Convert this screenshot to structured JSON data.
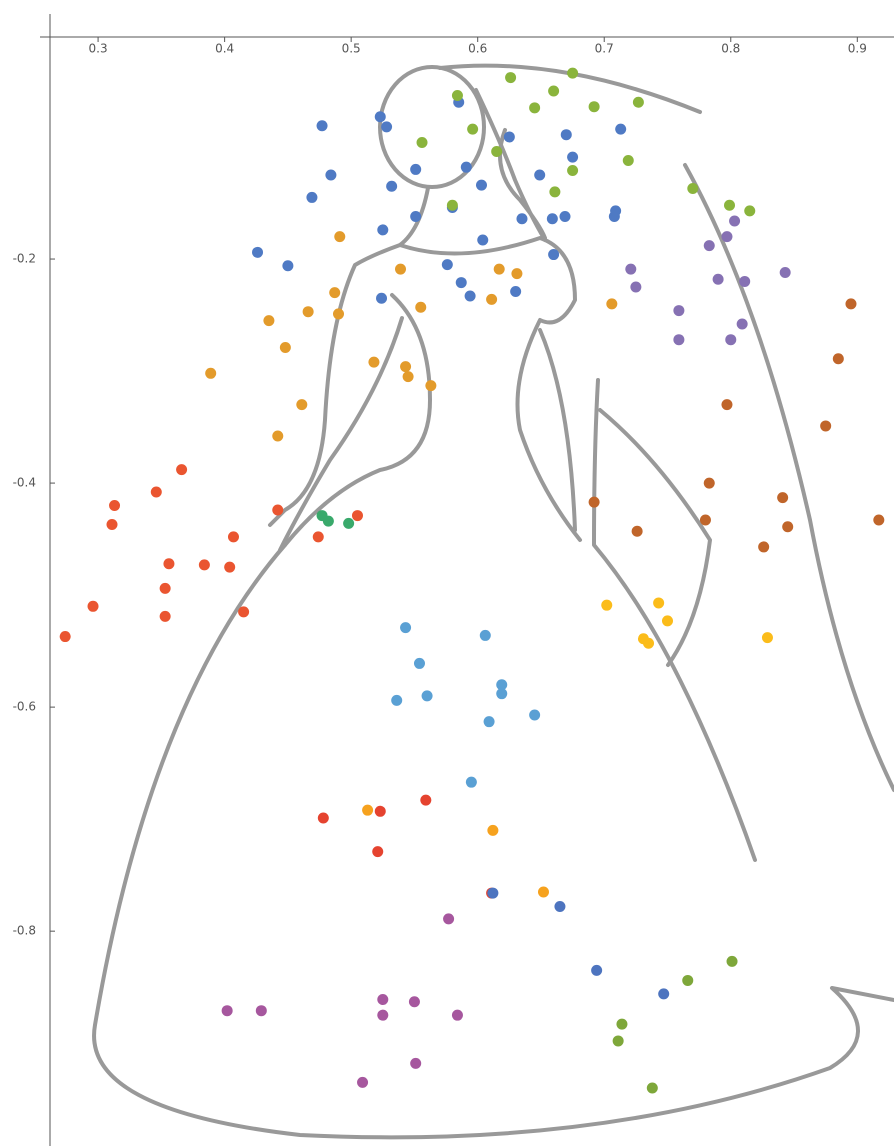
{
  "chart_data": {
    "type": "scatter",
    "xlim": [
      0.262,
      0.929
    ],
    "ylim": [
      -0.99,
      0
    ],
    "xticks": [
      0.3,
      0.4,
      0.5,
      0.6,
      0.7,
      0.8,
      0.9
    ],
    "yticks": [
      -0.2,
      -0.4,
      -0.6,
      -0.8
    ],
    "series": [
      {
        "color": "#4f7ac4",
        "x": [
          0.477,
          0.523,
          0.528,
          0.585,
          0.484,
          0.469,
          0.532,
          0.551,
          0.551,
          0.591,
          0.525,
          0.603,
          0.58,
          0.426,
          0.45,
          0.524,
          0.576,
          0.587,
          0.594,
          0.604,
          0.625,
          0.63,
          0.649,
          0.659,
          0.67,
          0.675,
          0.669,
          0.66,
          0.713,
          0.708,
          0.709,
          0.635
        ],
        "values": [
          -0.081,
          -0.073,
          -0.082,
          -0.06,
          -0.125,
          -0.145,
          -0.135,
          -0.12,
          -0.162,
          -0.118,
          -0.174,
          -0.134,
          -0.154,
          -0.194,
          -0.206,
          -0.235,
          -0.205,
          -0.221,
          -0.233,
          -0.183,
          -0.091,
          -0.229,
          -0.125,
          -0.164,
          -0.089,
          -0.109,
          -0.162,
          -0.196,
          -0.084,
          -0.162,
          -0.157,
          -0.164
        ]
      },
      {
        "color": "#8ab43c",
        "x": [
          0.675,
          0.626,
          0.584,
          0.66,
          0.645,
          0.692,
          0.727,
          0.596,
          0.556,
          0.615,
          0.719,
          0.675,
          0.661,
          0.58,
          0.77,
          0.799,
          0.815
        ],
        "values": [
          -0.034,
          -0.038,
          -0.054,
          -0.05,
          -0.065,
          -0.064,
          -0.06,
          -0.084,
          -0.096,
          -0.104,
          -0.112,
          -0.121,
          -0.14,
          -0.152,
          -0.137,
          -0.152,
          -0.157
        ]
      },
      {
        "color": "#e39b2b",
        "x": [
          0.491,
          0.487,
          0.49,
          0.435,
          0.466,
          0.448,
          0.539,
          0.555,
          0.617,
          0.631,
          0.611,
          0.706,
          0.518,
          0.543,
          0.545,
          0.563,
          0.389,
          0.461,
          0.442
        ],
        "values": [
          -0.18,
          -0.23,
          -0.249,
          -0.255,
          -0.247,
          -0.279,
          -0.209,
          -0.243,
          -0.209,
          -0.213,
          -0.236,
          -0.24,
          -0.292,
          -0.296,
          -0.305,
          -0.313,
          -0.302,
          -0.33,
          -0.358
        ]
      },
      {
        "color": "#8671b3",
        "x": [
          0.803,
          0.783,
          0.797,
          0.843,
          0.721,
          0.79,
          0.811,
          0.725,
          0.759,
          0.809,
          0.759,
          0.8
        ],
        "values": [
          -0.166,
          -0.188,
          -0.18,
          -0.212,
          -0.209,
          -0.218,
          -0.22,
          -0.225,
          -0.246,
          -0.258,
          -0.272,
          -0.272
        ]
      },
      {
        "color": "#c0652a",
        "x": [
          0.895,
          0.885,
          0.797,
          0.875,
          0.783,
          0.841,
          0.692,
          0.845,
          0.78,
          0.917,
          0.726,
          0.826
        ],
        "values": [
          -0.24,
          -0.289,
          -0.33,
          -0.349,
          -0.4,
          -0.413,
          -0.417,
          -0.439,
          -0.433,
          -0.433,
          -0.443,
          -0.457
        ]
      },
      {
        "color": "#ea5530",
        "x": [
          0.366,
          0.346,
          0.313,
          0.311,
          0.442,
          0.407,
          0.474,
          0.505,
          0.356,
          0.384,
          0.404,
          0.296,
          0.353,
          0.353,
          0.415,
          0.274
        ],
        "values": [
          -0.388,
          -0.408,
          -0.42,
          -0.437,
          -0.424,
          -0.448,
          -0.448,
          -0.429,
          -0.472,
          -0.473,
          -0.475,
          -0.51,
          -0.494,
          -0.519,
          -0.515,
          -0.537
        ]
      },
      {
        "color": "#39a96b",
        "x": [
          0.477,
          0.482,
          0.498
        ],
        "values": [
          -0.429,
          -0.434,
          -0.436
        ]
      },
      {
        "color": "#5aa0d4",
        "x": [
          0.543,
          0.606,
          0.554,
          0.619,
          0.619,
          0.56,
          0.536,
          0.609,
          0.645,
          0.595
        ],
        "values": [
          -0.529,
          -0.536,
          -0.561,
          -0.58,
          -0.588,
          -0.59,
          -0.594,
          -0.613,
          -0.607,
          -0.667
        ]
      },
      {
        "color": "#fbbc1a",
        "x": [
          0.702,
          0.743,
          0.75,
          0.731,
          0.735,
          0.829
        ],
        "values": [
          -0.509,
          -0.507,
          -0.523,
          -0.539,
          -0.543,
          -0.538
        ]
      },
      {
        "color": "#f6a21e",
        "x": [
          0.513,
          0.612,
          0.652
        ],
        "values": [
          -0.692,
          -0.71,
          -0.765
        ]
      },
      {
        "color": "#e5432f",
        "x": [
          0.478,
          0.523,
          0.559,
          0.521,
          0.611
        ],
        "values": [
          -0.699,
          -0.693,
          -0.683,
          -0.729,
          -0.766
        ]
      },
      {
        "color": "#4d74bf",
        "x": [
          0.612,
          0.665,
          0.694,
          0.747
        ],
        "values": [
          -0.766,
          -0.778,
          -0.835,
          -0.856
        ]
      },
      {
        "color": "#a6579e",
        "x": [
          0.577,
          0.402,
          0.429,
          0.525,
          0.525,
          0.55,
          0.584,
          0.551,
          0.509
        ],
        "values": [
          -0.789,
          -0.871,
          -0.871,
          -0.861,
          -0.875,
          -0.863,
          -0.875,
          -0.918,
          -0.935
        ]
      },
      {
        "color": "#7ea73a",
        "x": [
          0.801,
          0.766,
          0.714,
          0.711,
          0.738
        ],
        "values": [
          -0.827,
          -0.844,
          -0.883,
          -0.898,
          -0.94
        ]
      }
    ]
  }
}
